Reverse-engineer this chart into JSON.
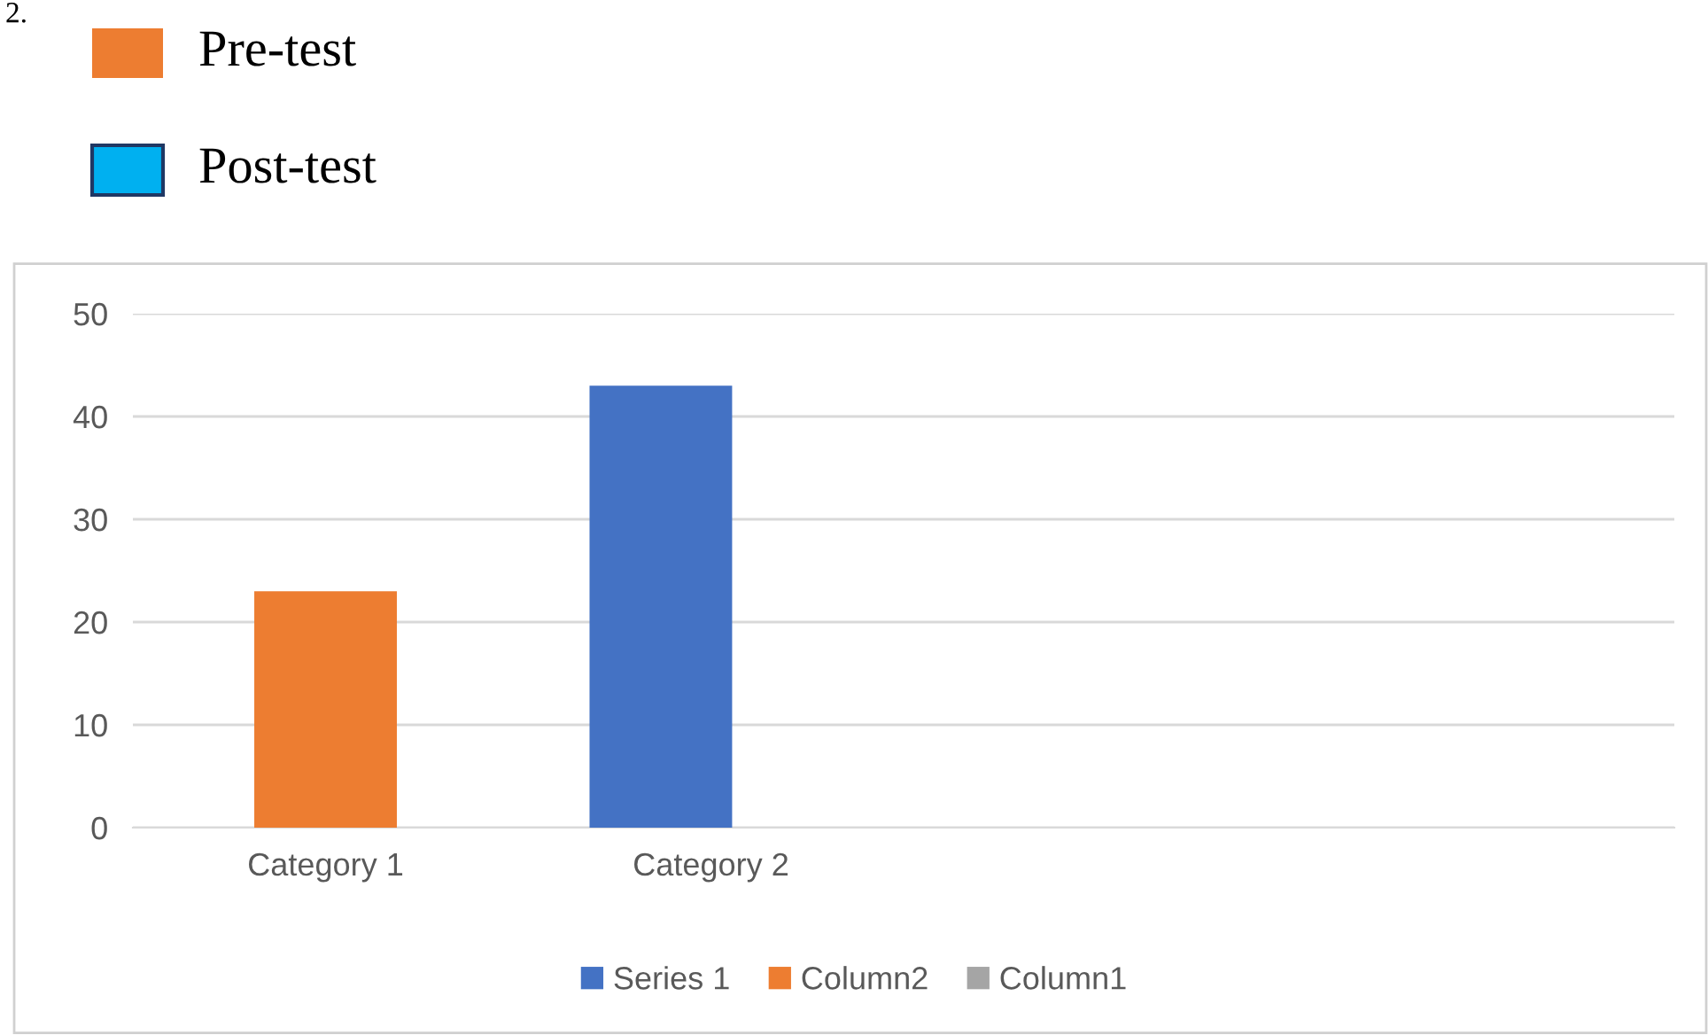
{
  "chart_data": {
    "type": "bar",
    "categories": [
      "Category 1",
      "Category 2",
      null,
      null
    ],
    "series": [
      {
        "name": "Series 1",
        "color": "#4472c4",
        "values": [
          null,
          43,
          null,
          null
        ]
      },
      {
        "name": "Column2",
        "color": "#ed7d31",
        "values": [
          23,
          null,
          null,
          null
        ]
      },
      {
        "name": "Column1",
        "color": "#a5a5a5",
        "values": [
          null,
          null,
          null,
          null
        ]
      }
    ],
    "ylim": [
      0,
      50
    ],
    "yticks": [
      0,
      10,
      20,
      30,
      40,
      50
    ],
    "grid": "y",
    "legend": "bottom",
    "annotations": [
      "2.",
      "Pre-test",
      "Post-test"
    ]
  }
}
